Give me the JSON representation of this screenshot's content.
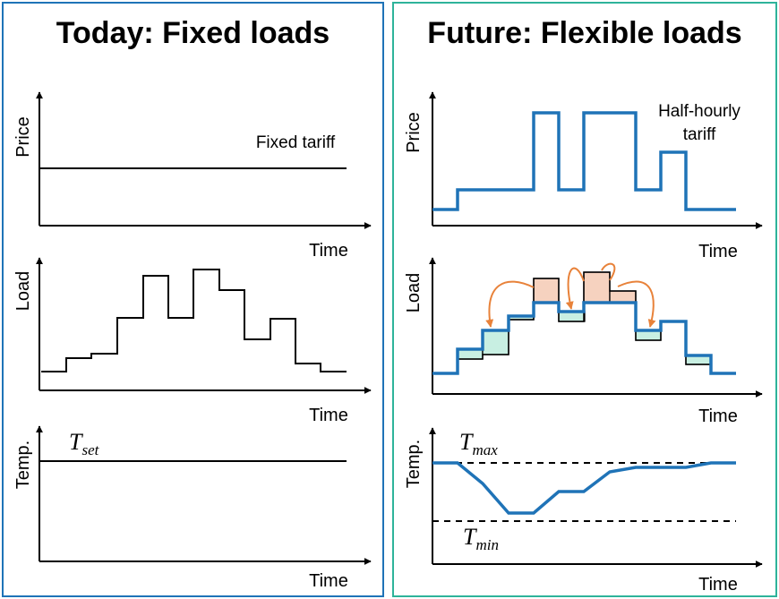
{
  "colors": {
    "left_border": "#1f73b7",
    "right_border": "#2eb39a",
    "tariff_line": "#1f73b7",
    "arrow": "#e8823a",
    "shift_up": "#f6d2bf",
    "shift_down": "#c8efe2"
  },
  "left": {
    "title": "Today: Fixed loads",
    "price": {
      "ylabel": "Price",
      "xlabel": "Time",
      "annotation": "Fixed tariff"
    },
    "load": {
      "ylabel": "Load",
      "xlabel": "Time"
    },
    "temp": {
      "ylabel": "Temp.",
      "xlabel": "Time",
      "setpoint_main": "T",
      "setpoint_sub": "set"
    }
  },
  "right": {
    "title": "Future: Flexible loads",
    "price": {
      "ylabel": "Price",
      "xlabel": "Time",
      "annotation_line1": "Half-hourly",
      "annotation_line2": "tariff"
    },
    "load": {
      "ylabel": "Load",
      "xlabel": "Time"
    },
    "temp": {
      "ylabel": "Temp.",
      "xlabel": "Time",
      "max_main": "T",
      "max_sub": "max",
      "min_main": "T",
      "min_sub": "min"
    }
  }
}
